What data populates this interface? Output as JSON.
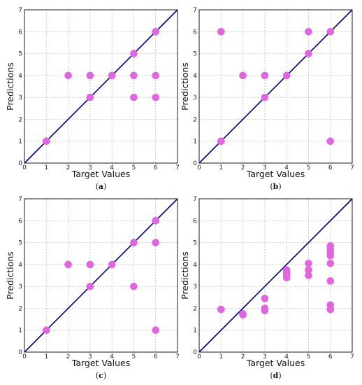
{
  "colors": {
    "point": "#e066e0",
    "ideal_line": "#00008b",
    "grid": "#b8b8b8"
  },
  "chart_data": [
    {
      "type": "scatter",
      "caption": "a",
      "xlabel": "Target Values",
      "ylabel": "Predictions",
      "xlim": [
        0,
        7
      ],
      "ylim": [
        0,
        7
      ],
      "xticks": [
        0,
        1,
        2,
        3,
        4,
        5,
        6,
        7
      ],
      "yticks": [
        0,
        1,
        2,
        3,
        4,
        5,
        6,
        7
      ],
      "grid": true,
      "reference_line": "y = x",
      "points": [
        {
          "x": 1,
          "y": 1
        },
        {
          "x": 2,
          "y": 4
        },
        {
          "x": 3,
          "y": 4
        },
        {
          "x": 3,
          "y": 3
        },
        {
          "x": 4,
          "y": 4
        },
        {
          "x": 5,
          "y": 5
        },
        {
          "x": 5,
          "y": 4
        },
        {
          "x": 5,
          "y": 3
        },
        {
          "x": 6,
          "y": 6
        },
        {
          "x": 6,
          "y": 4
        },
        {
          "x": 6,
          "y": 3
        }
      ]
    },
    {
      "type": "scatter",
      "caption": "b",
      "xlabel": "Target Values",
      "ylabel": "Predictions",
      "xlim": [
        0,
        7
      ],
      "ylim": [
        0,
        7
      ],
      "xticks": [
        0,
        1,
        2,
        3,
        4,
        5,
        6,
        7
      ],
      "yticks": [
        0,
        1,
        2,
        3,
        4,
        5,
        6,
        7
      ],
      "grid": true,
      "reference_line": "y = x",
      "points": [
        {
          "x": 1,
          "y": 6
        },
        {
          "x": 1,
          "y": 1
        },
        {
          "x": 2,
          "y": 4
        },
        {
          "x": 3,
          "y": 4
        },
        {
          "x": 3,
          "y": 3
        },
        {
          "x": 4,
          "y": 4
        },
        {
          "x": 5,
          "y": 6
        },
        {
          "x": 5,
          "y": 5
        },
        {
          "x": 6,
          "y": 6
        },
        {
          "x": 6,
          "y": 1
        }
      ]
    },
    {
      "type": "scatter",
      "caption": "c",
      "xlabel": "Target Values",
      "ylabel": "Predictions",
      "xlim": [
        0,
        7
      ],
      "ylim": [
        0,
        7
      ],
      "xticks": [
        0,
        1,
        2,
        3,
        4,
        5,
        6,
        7
      ],
      "yticks": [
        0,
        1,
        2,
        3,
        4,
        5,
        6,
        7
      ],
      "grid": true,
      "reference_line": "y = x",
      "points": [
        {
          "x": 1,
          "y": 1
        },
        {
          "x": 2,
          "y": 4
        },
        {
          "x": 3,
          "y": 4
        },
        {
          "x": 3,
          "y": 3
        },
        {
          "x": 4,
          "y": 4
        },
        {
          "x": 5,
          "y": 5
        },
        {
          "x": 5,
          "y": 3
        },
        {
          "x": 6,
          "y": 6
        },
        {
          "x": 6,
          "y": 5
        },
        {
          "x": 6,
          "y": 1
        }
      ]
    },
    {
      "type": "scatter",
      "caption": "d",
      "xlabel": "Target Values",
      "ylabel": "Predictions",
      "xlim": [
        0,
        7
      ],
      "ylim": [
        0,
        7
      ],
      "xticks": [
        0,
        1,
        2,
        3,
        4,
        5,
        6,
        7
      ],
      "yticks": [
        0,
        1,
        2,
        3,
        4,
        5,
        6,
        7
      ],
      "grid": true,
      "reference_line": "y = x",
      "points": [
        {
          "x": 1,
          "y": 1.95
        },
        {
          "x": 2,
          "y": 1.75
        },
        {
          "x": 2,
          "y": 1.7
        },
        {
          "x": 3,
          "y": 2.45
        },
        {
          "x": 3,
          "y": 2.0
        },
        {
          "x": 3,
          "y": 1.9
        },
        {
          "x": 4,
          "y": 3.75
        },
        {
          "x": 4,
          "y": 3.6
        },
        {
          "x": 4,
          "y": 3.5
        },
        {
          "x": 4,
          "y": 3.4
        },
        {
          "x": 5,
          "y": 4.05
        },
        {
          "x": 5,
          "y": 3.75
        },
        {
          "x": 5,
          "y": 3.5
        },
        {
          "x": 6,
          "y": 4.85
        },
        {
          "x": 6,
          "y": 4.7
        },
        {
          "x": 6,
          "y": 4.55
        },
        {
          "x": 6,
          "y": 4.4
        },
        {
          "x": 6,
          "y": 4.05
        },
        {
          "x": 6,
          "y": 3.25
        },
        {
          "x": 6,
          "y": 2.15
        },
        {
          "x": 6,
          "y": 1.95
        }
      ]
    }
  ]
}
